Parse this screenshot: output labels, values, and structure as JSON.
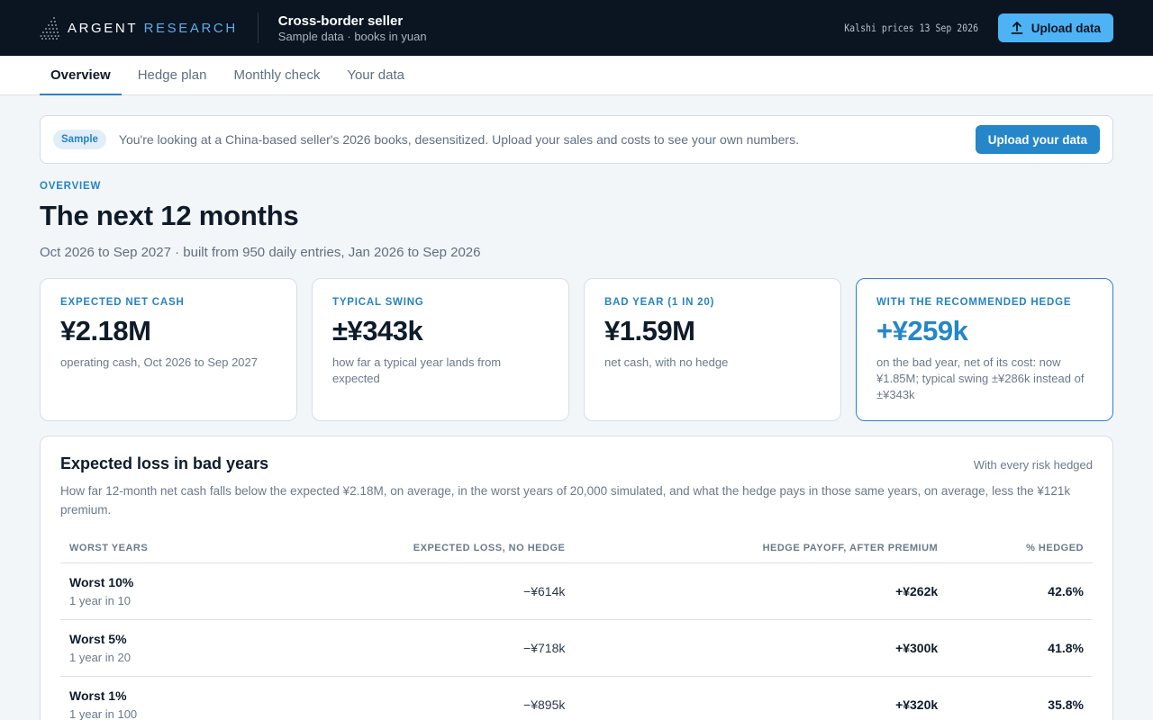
{
  "header": {
    "logo_word1": "ARGENT",
    "logo_word2": "RESEARCH",
    "org_name": "Cross-border seller",
    "org_sub": "Sample data · books in yuan",
    "prices_note": "Kalshi prices 13 Sep 2026",
    "upload_label": "Upload data",
    "upload_icon": "upload-icon"
  },
  "tabs": [
    {
      "label": "Overview",
      "active": true
    },
    {
      "label": "Hedge plan",
      "active": false
    },
    {
      "label": "Monthly check",
      "active": false
    },
    {
      "label": "Your data",
      "active": false
    }
  ],
  "banner": {
    "badge": "Sample",
    "text": "You're looking at a China-based seller's 2026 books, desensitized. Upload your sales and costs to see your own numbers.",
    "button": "Upload your data"
  },
  "page": {
    "eyebrow": "OVERVIEW",
    "title": "The next 12 months",
    "subtitle": "Oct 2026 to Sep 2027 · built from 950 daily entries, Jan 2026 to Sep 2026"
  },
  "kpis": [
    {
      "label": "EXPECTED NET CASH",
      "value": "¥2.18M",
      "desc": "operating cash, Oct 2026 to Sep 2027"
    },
    {
      "label": "TYPICAL SWING",
      "value": "±¥343k",
      "desc": "how far a typical year lands from expected"
    },
    {
      "label": "BAD YEAR (1 IN 20)",
      "value": "¥1.59M",
      "desc": "net cash, with no hedge"
    },
    {
      "label": "WITH THE RECOMMENDED HEDGE",
      "value": "+¥259k",
      "desc": "on the bad year, net of its cost: now ¥1.85M; typical swing ±¥286k instead of ±¥343k"
    }
  ],
  "panel": {
    "title": "Expected loss in bad years",
    "tag": "With every risk hedged",
    "desc": "How far 12-month net cash falls below the expected ¥2.18M, on average, in the worst years of 20,000 simulated, and what the hedge pays in those same years, on average, less the ¥121k premium.",
    "columns": [
      "WORST YEARS",
      "EXPECTED LOSS, NO HEDGE",
      "HEDGE PAYOFF, AFTER PREMIUM",
      "% HEDGED"
    ],
    "rows": [
      {
        "name": "Worst 10%",
        "sub": "1 year in 10",
        "loss": "−¥614k",
        "payoff": "+¥262k",
        "pct": "42.6%"
      },
      {
        "name": "Worst 5%",
        "sub": "1 year in 20",
        "loss": "−¥718k",
        "payoff": "+¥300k",
        "pct": "41.8%"
      },
      {
        "name": "Worst 1%",
        "sub": "1 year in 100",
        "loss": "−¥895k",
        "payoff": "+¥320k",
        "pct": "35.8%"
      }
    ]
  },
  "colors": {
    "topbar_bg": "#0b1421",
    "accent": "#2586c9",
    "accent_light": "#4db3f5",
    "page_bg": "#f3f6f9"
  }
}
